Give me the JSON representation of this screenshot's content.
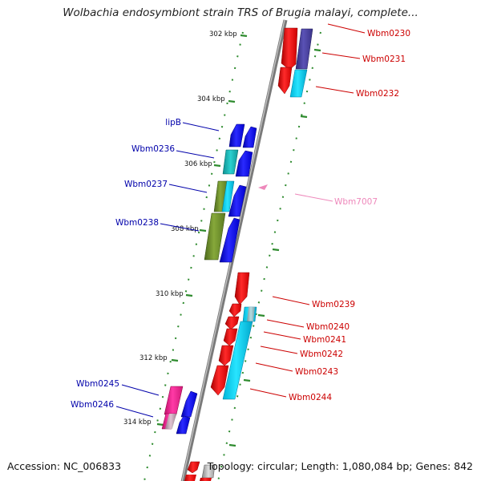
{
  "title": "Wolbachia endosymbiont strain TRS of Brugia malayi, complete...",
  "footer": {
    "accession": "Accession: NC_006833",
    "summary": "Topology: circular; Length: 1,080,084 bp; Genes: 842"
  },
  "colors": {
    "forward_label": "#cc0000",
    "reverse_label": "#0000aa",
    "pseudo_label": "#ee88bb",
    "ticks": "#2e8b2e",
    "backbone": "#7a7a7a"
  },
  "kbp_labels": [
    "302 kbp",
    "304 kbp",
    "306 kbp",
    "308 kbp",
    "310 kbp",
    "312 kbp",
    "314 kbp"
  ],
  "gene_labels": {
    "wbm0230": "Wbm0230",
    "wbm0231": "Wbm0231",
    "wbm0232": "Wbm0232",
    "lipb": "lipB",
    "wbm0236": "Wbm0236",
    "wbm0237": "Wbm0237",
    "wbm0238": "Wbm0238",
    "wbm7007": "Wbm7007",
    "wbm0239": "Wbm0239",
    "wbm0240": "Wbm0240",
    "wbm0241": "Wbm0241",
    "wbm0242": "Wbm0242",
    "wbm0243": "Wbm0243",
    "wbm0244": "Wbm0244",
    "wbm0245": "Wbm0245",
    "wbm0246": "Wbm0246"
  }
}
